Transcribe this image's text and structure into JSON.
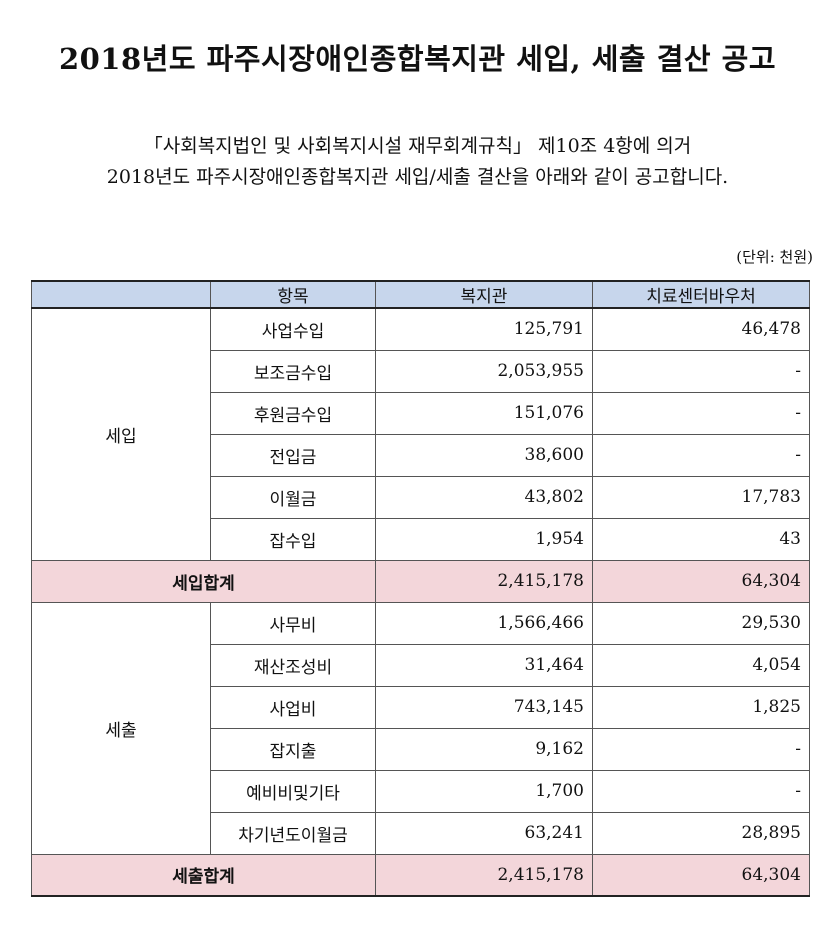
{
  "title": "2018년도 파주시장애인종합복지관 세입, 세출 결산 공고",
  "intro_line1": "「사회복지법인 및 사회복지시설 재무회계규칙」 제10조 4항에 의거",
  "intro_line2": "2018년도 파주시장애인종합복지관 세입/세출 결산을 아래와 같이 공고합니다.",
  "unit": "(단위: 천원)",
  "table": {
    "headers": [
      "",
      "항목",
      "복지관",
      "치료센터바우처"
    ],
    "revenue": {
      "group": "세입",
      "rows": [
        {
          "item": "사업수입",
          "welfare": "125,791",
          "voucher": "46,478"
        },
        {
          "item": "보조금수입",
          "welfare": "2,053,955",
          "voucher": "-"
        },
        {
          "item": "후원금수입",
          "welfare": "151,076",
          "voucher": "-"
        },
        {
          "item": "전입금",
          "welfare": "38,600",
          "voucher": "-"
        },
        {
          "item": "이월금",
          "welfare": "43,802",
          "voucher": "17,783"
        },
        {
          "item": "잡수입",
          "welfare": "1,954",
          "voucher": "43"
        }
      ],
      "total": {
        "label": "세입합계",
        "welfare": "2,415,178",
        "voucher": "64,304"
      }
    },
    "expense": {
      "group": "세출",
      "rows": [
        {
          "item": "사무비",
          "welfare": "1,566,466",
          "voucher": "29,530"
        },
        {
          "item": "재산조성비",
          "welfare": "31,464",
          "voucher": "4,054"
        },
        {
          "item": "사업비",
          "welfare": "743,145",
          "voucher": "1,825"
        },
        {
          "item": "잡지출",
          "welfare": "9,162",
          "voucher": "-"
        },
        {
          "item": "예비비및기타",
          "welfare": "1,700",
          "voucher": "-"
        },
        {
          "item": "차기년도이월금",
          "welfare": "63,241",
          "voucher": "28,895"
        }
      ],
      "total": {
        "label": "세출합계",
        "welfare": "2,415,178",
        "voucher": "64,304"
      }
    },
    "colors": {
      "header_bg": "#c7d6ec",
      "total_bg": "#f3d6da"
    }
  }
}
